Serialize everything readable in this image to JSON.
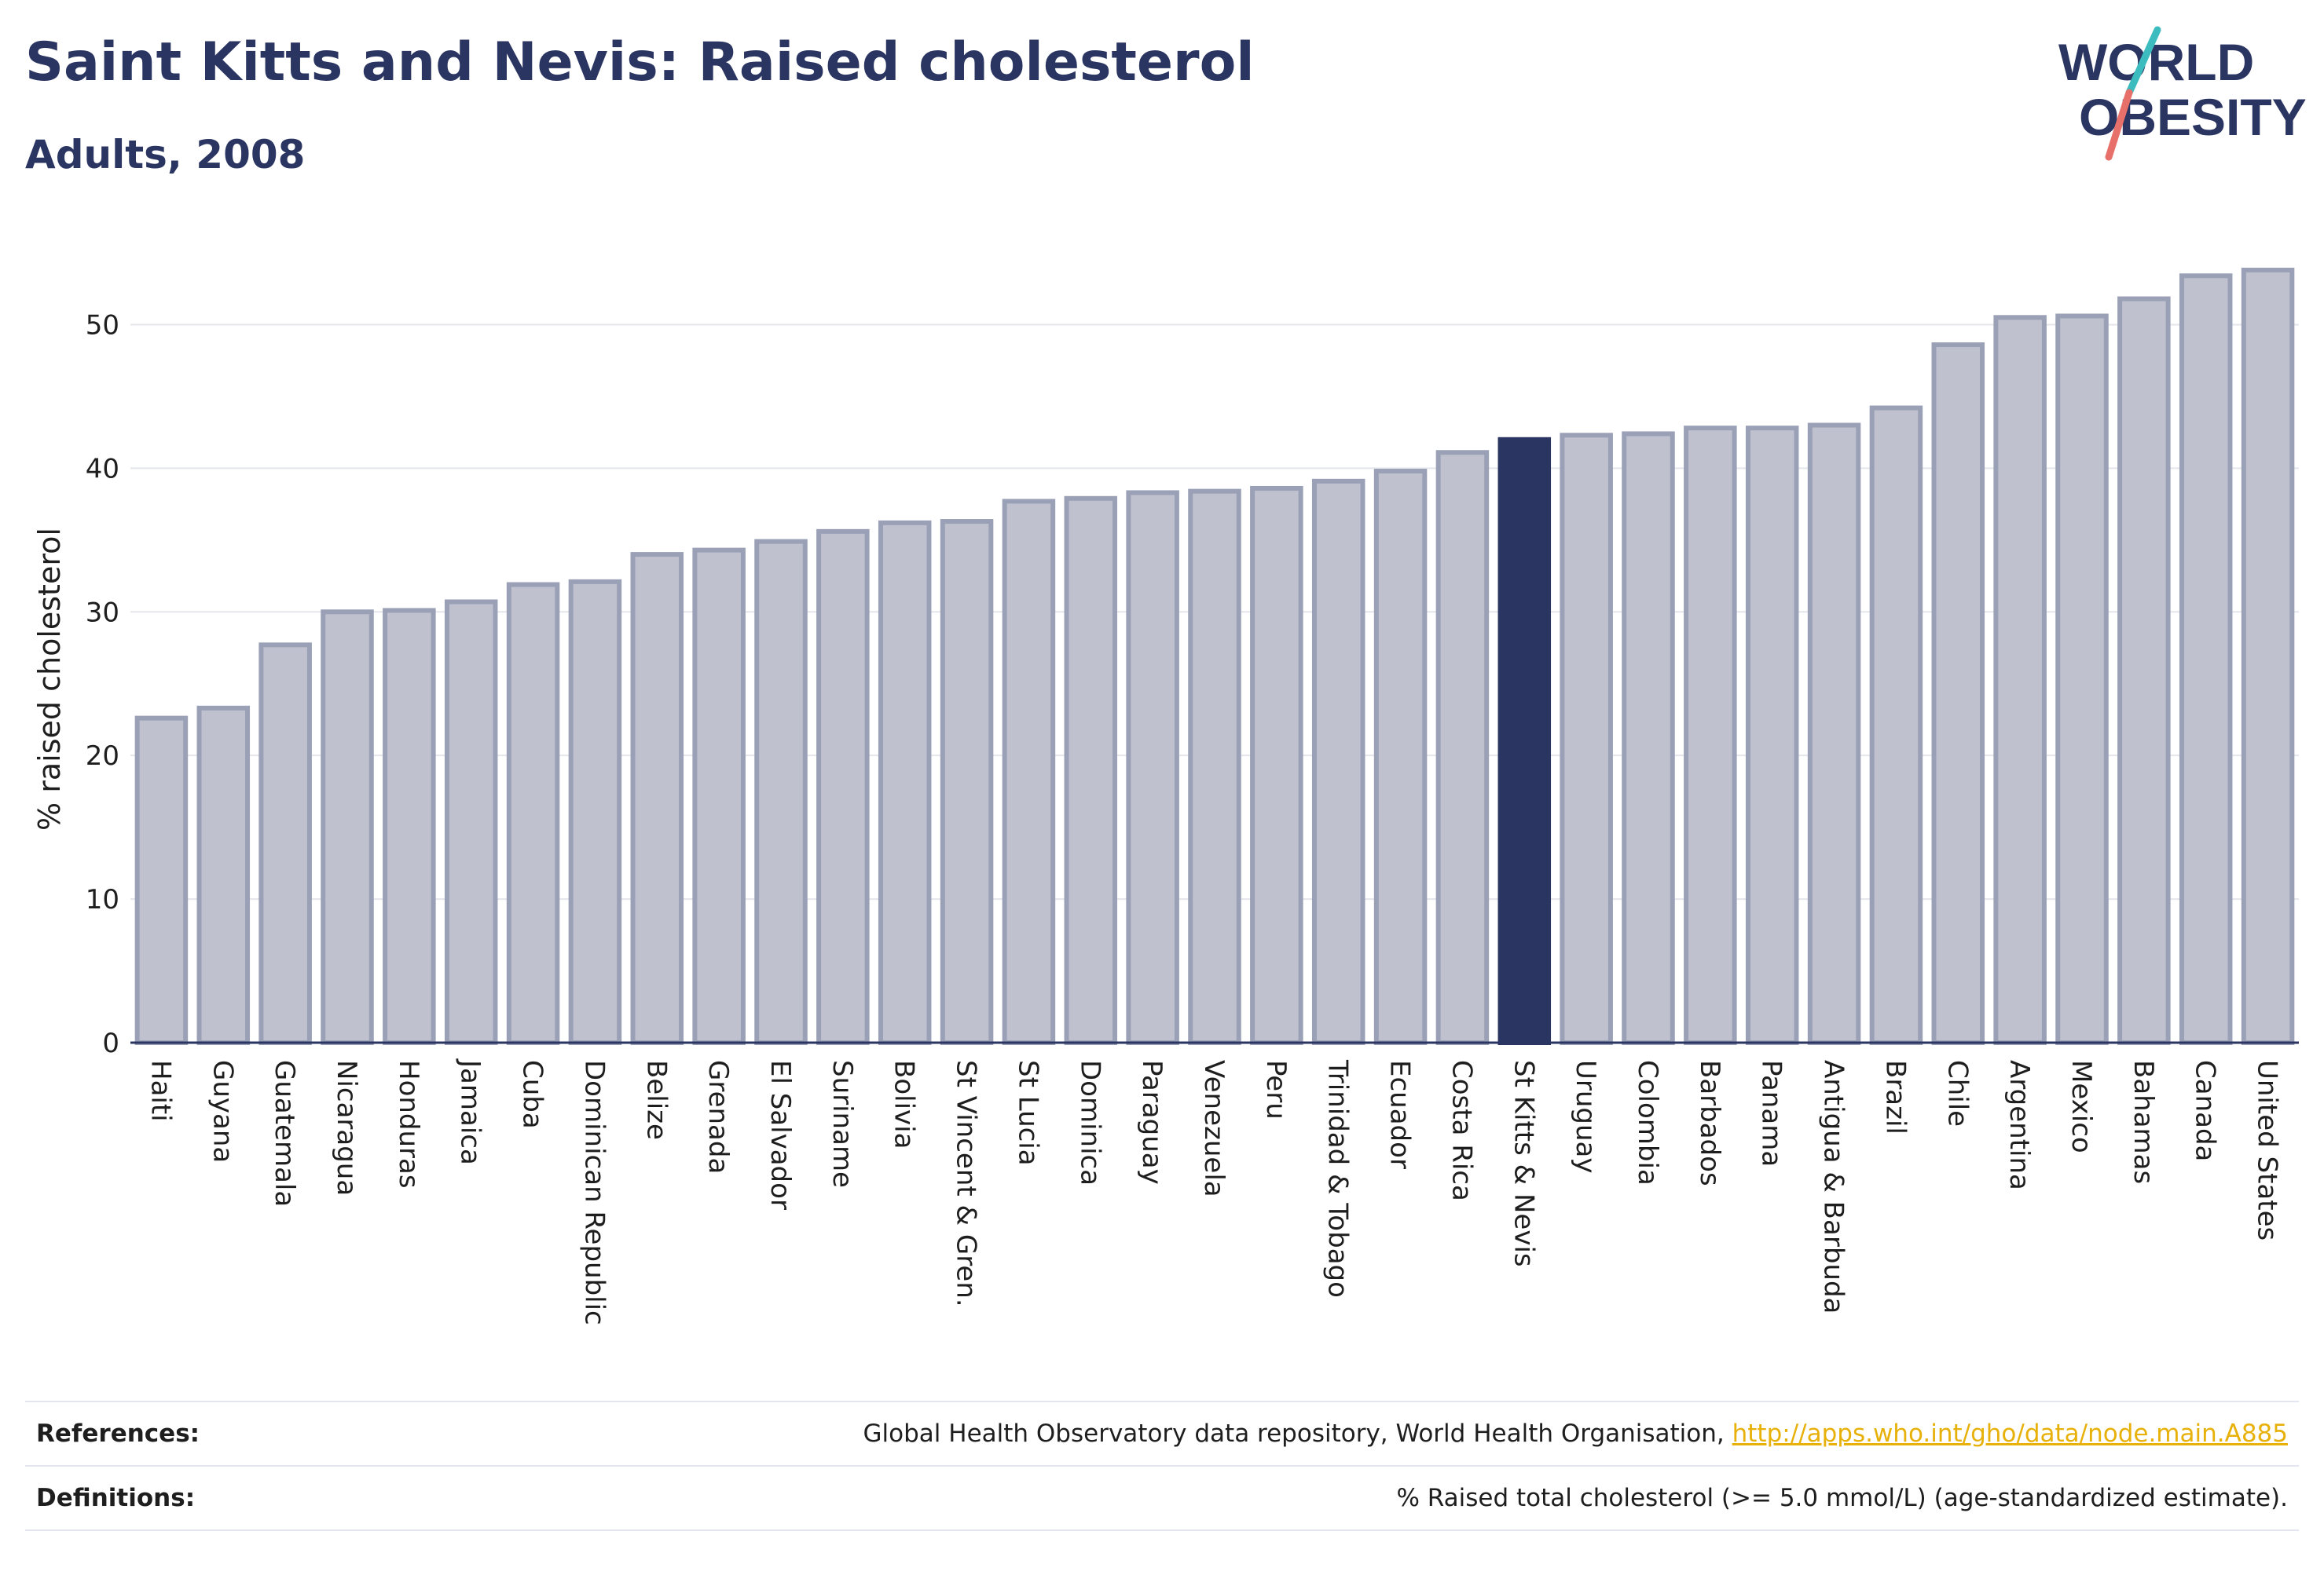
{
  "header": {
    "title": "Saint Kitts and Nevis: Raised cholesterol",
    "subtitle": "Adults, 2008"
  },
  "logo": {
    "line1": "WORLD",
    "line2": "OBESITY"
  },
  "chart_data": {
    "type": "bar",
    "ylabel": "% raised cholesterol",
    "ylim": [
      0,
      55
    ],
    "yticks": [
      0,
      10,
      20,
      30,
      40,
      50
    ],
    "grid": true,
    "highlight": "St Kitts & Nevis",
    "colors": {
      "bar": "#bfc2ce",
      "bar_border": "#9aa0b6",
      "highlight": "#2b3561",
      "grid": "#e4e6ec",
      "axis": "#2b3561"
    },
    "categories": [
      "Haiti",
      "Guyana",
      "Guatemala",
      "Nicaragua",
      "Honduras",
      "Jamaica",
      "Cuba",
      "Dominican Republic",
      "Belize",
      "Grenada",
      "El Salvador",
      "Suriname",
      "Bolivia",
      "St Vincent & Gren.",
      "St Lucia",
      "Dominica",
      "Paraguay",
      "Venezuela",
      "Peru",
      "Trinidad & Tobago",
      "Ecuador",
      "Costa Rica",
      "St Kitts & Nevis",
      "Uruguay",
      "Colombia",
      "Barbados",
      "Panama",
      "Antigua & Barbuda",
      "Brazil",
      "Chile",
      "Argentina",
      "Mexico",
      "Bahamas",
      "Canada",
      "United States"
    ],
    "values": [
      22.6,
      23.3,
      27.7,
      30.0,
      30.1,
      30.7,
      31.9,
      32.1,
      34.0,
      34.3,
      34.9,
      35.6,
      36.2,
      36.3,
      37.7,
      37.9,
      38.3,
      38.4,
      38.6,
      39.1,
      39.8,
      41.1,
      42.0,
      42.3,
      42.4,
      42.8,
      42.8,
      43.0,
      44.2,
      48.6,
      50.5,
      50.6,
      51.8,
      53.4,
      53.8
    ]
  },
  "footer": {
    "references_label": "References:",
    "references_text": "Global Health Observatory data repository, World Health Organisation, ",
    "references_link": "http://apps.who.int/gho/data/node.main.A885",
    "definitions_label": "Definitions:",
    "definitions_text": "% Raised total cholesterol (>= 5.0 mmol/L) (age-standardized estimate)."
  }
}
